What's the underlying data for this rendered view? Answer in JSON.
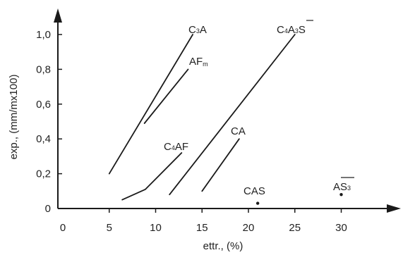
{
  "chart_data": {
    "type": "line",
    "title": "",
    "xlabel": "ettr., (%)",
    "ylabel": "exp., (mm/mx100)",
    "xlim": [
      0,
      35
    ],
    "ylim": [
      0,
      1.1
    ],
    "x_ticks": [
      0,
      5,
      10,
      15,
      20,
      25,
      30
    ],
    "x_tick_labels": [
      "0",
      "5",
      "10",
      "15",
      "20",
      "25",
      "30"
    ],
    "y_ticks": [
      0,
      0.2,
      0.4,
      0.6,
      0.8,
      1.0
    ],
    "y_tick_labels": [
      "0",
      "0,2",
      "0,4",
      "0,6",
      "0,8",
      "1,0"
    ],
    "grid": false,
    "legend": "none",
    "colors": {
      "line": "#1a1a1a",
      "text": "#222222"
    },
    "series": [
      {
        "name": "C3A",
        "label_main": [
          "C",
          "A"
        ],
        "label_sub": [
          "3"
        ],
        "points": [
          [
            5.0,
            0.2
          ],
          [
            14.0,
            1.0
          ]
        ]
      },
      {
        "name": "AFm",
        "label_main": [
          "AF"
        ],
        "label_sub": [
          "m"
        ],
        "points": [
          [
            8.8,
            0.49
          ],
          [
            13.5,
            0.8
          ]
        ]
      },
      {
        "name": "C4A3S",
        "label_main": [
          "C",
          "A",
          "S"
        ],
        "label_sub": [
          "4",
          "3"
        ],
        "points": [
          [
            11.5,
            0.08
          ],
          [
            25.0,
            1.0
          ]
        ]
      },
      {
        "name": "C4AF",
        "label_main": [
          "C",
          "AF"
        ],
        "label_sub": [
          "4"
        ],
        "points": [
          [
            6.4,
            0.05
          ],
          [
            8.9,
            0.11
          ],
          [
            12.8,
            0.32
          ]
        ]
      },
      {
        "name": "CA",
        "label_main": [
          "CA"
        ],
        "label_sub": [],
        "points": [
          [
            15.0,
            0.1
          ],
          [
            19.0,
            0.4
          ]
        ]
      },
      {
        "name": "CAS",
        "label_main": [
          "CAS"
        ],
        "label_sub": [],
        "points": [
          [
            21.0,
            0.03
          ]
        ]
      },
      {
        "name": "AS3",
        "label_main": [
          "A",
          "S"
        ],
        "label_sub": [
          "3"
        ],
        "points": [
          [
            30.0,
            0.08
          ]
        ]
      }
    ]
  }
}
